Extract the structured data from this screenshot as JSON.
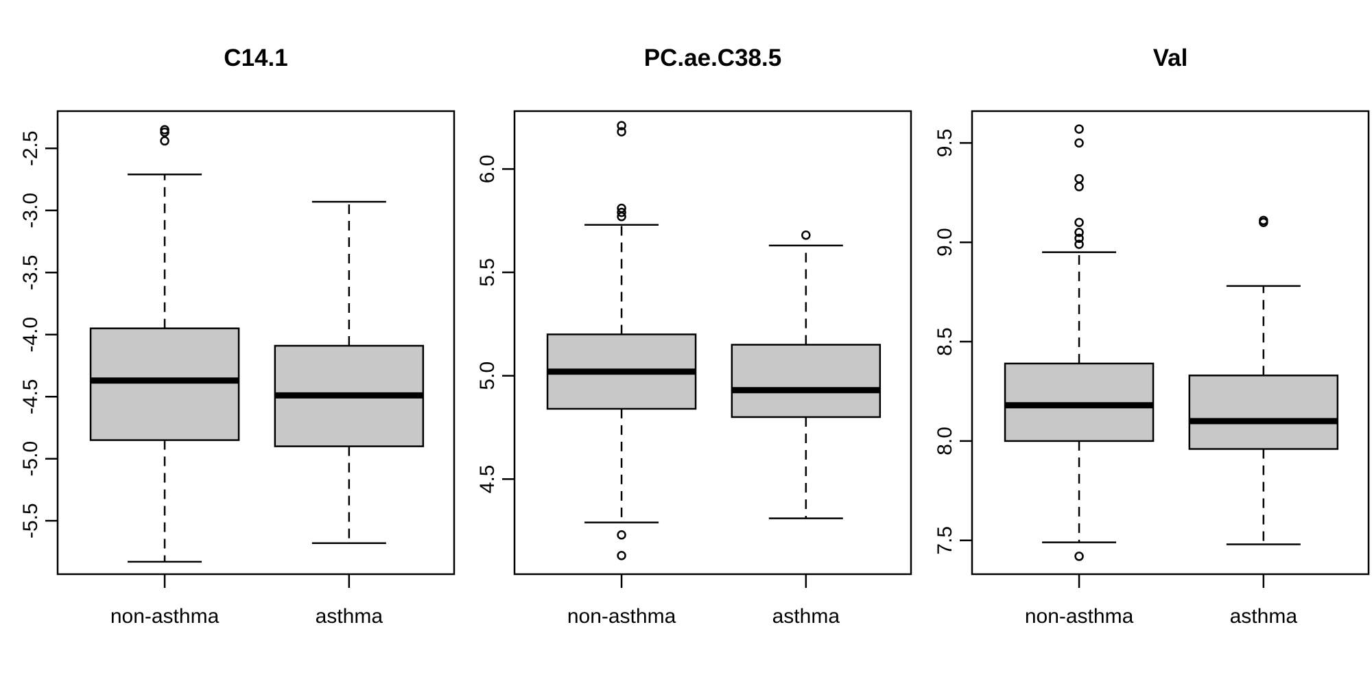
{
  "colors": {
    "box_fill": "#c8c8c8",
    "stroke": "#000000",
    "background": "#ffffff"
  },
  "chart_data": [
    {
      "type": "boxplot",
      "title": "C14.1",
      "categories": [
        "non-asthma",
        "asthma"
      ],
      "ylim": [
        -5.93,
        -2.2
      ],
      "yticks": [
        -5.5,
        -5.0,
        -4.5,
        -4.0,
        -3.5,
        -3.0,
        -2.5
      ],
      "ytick_labels": [
        "-5.5",
        "-5.0",
        "-4.5",
        "-4.0",
        "-3.5",
        "-3.0",
        "-2.5"
      ],
      "boxes": [
        {
          "category": "non-asthma",
          "whisker_low": -5.83,
          "q1": -4.85,
          "median": -4.37,
          "q3": -3.95,
          "whisker_high": -2.71,
          "outliers": [
            -2.44,
            -2.37,
            -2.35
          ]
        },
        {
          "category": "asthma",
          "whisker_low": -5.68,
          "q1": -4.9,
          "median": -4.49,
          "q3": -4.09,
          "whisker_high": -2.93,
          "outliers": []
        }
      ],
      "grid": false
    },
    {
      "type": "boxplot",
      "title": "PC.ae.C38.5",
      "categories": [
        "non-asthma",
        "asthma"
      ],
      "ylim": [
        4.04,
        6.28
      ],
      "yticks": [
        4.5,
        5.0,
        5.5,
        6.0
      ],
      "ytick_labels": [
        "4.5",
        "5.0",
        "5.5",
        "6.0"
      ],
      "boxes": [
        {
          "category": "non-asthma",
          "whisker_low": 4.29,
          "q1": 4.84,
          "median": 5.02,
          "q3": 5.2,
          "whisker_high": 5.73,
          "outliers": [
            4.23,
            4.13,
            5.77,
            5.79,
            5.81,
            6.18,
            6.21
          ]
        },
        {
          "category": "asthma",
          "whisker_low": 4.31,
          "q1": 4.8,
          "median": 4.93,
          "q3": 5.15,
          "whisker_high": 5.63,
          "outliers": [
            5.68
          ]
        }
      ],
      "grid": false
    },
    {
      "type": "boxplot",
      "title": "Val",
      "categories": [
        "non-asthma",
        "asthma"
      ],
      "ylim": [
        7.33,
        9.66
      ],
      "yticks": [
        7.5,
        8.0,
        8.5,
        9.0,
        9.5
      ],
      "ytick_labels": [
        "7.5",
        "8.0",
        "8.5",
        "9.0",
        "9.5"
      ],
      "boxes": [
        {
          "category": "non-asthma",
          "whisker_low": 7.49,
          "q1": 8.0,
          "median": 8.18,
          "q3": 8.39,
          "whisker_high": 8.95,
          "outliers": [
            7.42,
            8.99,
            9.02,
            9.05,
            9.1,
            9.28,
            9.32,
            9.5,
            9.57
          ]
        },
        {
          "category": "asthma",
          "whisker_low": 7.48,
          "q1": 7.96,
          "median": 8.1,
          "q3": 8.33,
          "whisker_high": 8.78,
          "outliers": [
            9.1,
            9.11
          ]
        }
      ],
      "grid": false
    }
  ]
}
